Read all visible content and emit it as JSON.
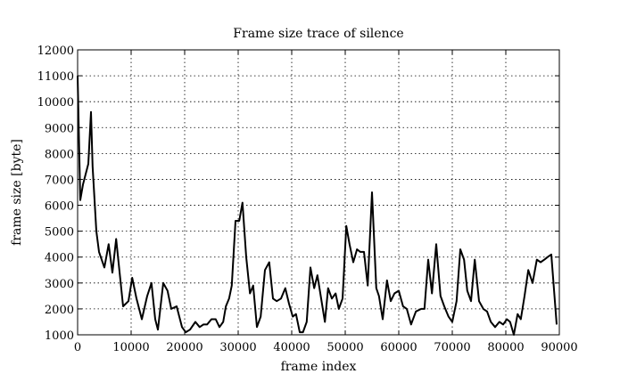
{
  "chart_data": {
    "type": "line",
    "title": "Frame size trace of silence",
    "xlabel": "frame index",
    "ylabel": "frame size [byte]",
    "xlim": [
      0,
      90000
    ],
    "ylim": [
      1000,
      12000
    ],
    "xticks": [
      0,
      10000,
      20000,
      30000,
      40000,
      50000,
      60000,
      70000,
      80000,
      90000
    ],
    "yticks": [
      1000,
      2000,
      3000,
      4000,
      5000,
      6000,
      7000,
      8000,
      9000,
      10000,
      11000,
      12000
    ],
    "grid": true,
    "series": [
      {
        "name": "",
        "x": [
          0,
          500,
          1000,
          2000,
          2500,
          2800,
          3500,
          4000,
          5000,
          5800,
          6500,
          7200,
          7800,
          8500,
          9500,
          10200,
          11000,
          12000,
          13000,
          13800,
          14500,
          15000,
          16000,
          16800,
          17500,
          18500,
          19500,
          20200,
          21000,
          22000,
          22800,
          23500,
          24200,
          25000,
          25800,
          26500,
          27200,
          27700,
          28300,
          28800,
          29500,
          30200,
          30800,
          31500,
          32200,
          32800,
          33500,
          34200,
          35000,
          35800,
          36500,
          37200,
          38000,
          38800,
          39500,
          40200,
          40800,
          41500,
          42100,
          42800,
          43500,
          44200,
          44800,
          45500,
          46200,
          46800,
          47500,
          48200,
          48800,
          49500,
          50200,
          50800,
          51500,
          52200,
          52800,
          53500,
          54200,
          55000,
          55800,
          56300,
          57000,
          57800,
          58500,
          59200,
          60000,
          60800,
          61500,
          62300,
          63200,
          64200,
          64800,
          65500,
          66200,
          67000,
          67800,
          68500,
          69300,
          70000,
          70800,
          71500,
          72200,
          72800,
          73500,
          74200,
          75000,
          75800,
          76500,
          77200,
          78000,
          78800,
          79500,
          80200,
          80800,
          81500,
          82200,
          82800,
          83500,
          84200,
          85000,
          85800,
          86500,
          87200,
          87800,
          88500,
          89500
        ],
        "y": [
          11000,
          6200,
          6800,
          7600,
          9600,
          7500,
          5000,
          4200,
          3600,
          4500,
          3400,
          4700,
          3500,
          2100,
          2300,
          3200,
          2400,
          1600,
          2500,
          3000,
          1600,
          1200,
          3000,
          2700,
          2000,
          2100,
          1300,
          1100,
          1200,
          1500,
          1300,
          1400,
          1400,
          1600,
          1600,
          1300,
          1500,
          2100,
          2400,
          2900,
          5400,
          5400,
          6100,
          4000,
          2600,
          2900,
          1300,
          1700,
          3500,
          3800,
          2400,
          2300,
          2400,
          2800,
          2200,
          1700,
          1800,
          1100,
          1100,
          1500,
          3600,
          2800,
          3300,
          2400,
          1500,
          2800,
          2400,
          2600,
          2000,
          2400,
          5200,
          4500,
          3800,
          4300,
          4200,
          4200,
          2900,
          6500,
          2800,
          2500,
          1600,
          3100,
          2300,
          2600,
          2700,
          2100,
          2000,
          1400,
          1900,
          2000,
          2000,
          3900,
          2600,
          4500,
          2500,
          2100,
          1700,
          1500,
          2300,
          4300,
          3900,
          2700,
          2300,
          3900,
          2300,
          2000,
          1900,
          1500,
          1300,
          1500,
          1400,
          1600,
          1500,
          1000,
          1800,
          1600,
          2500,
          3500,
          3000,
          3900,
          3800,
          3900,
          4000,
          4100,
          1400
        ]
      }
    ]
  }
}
